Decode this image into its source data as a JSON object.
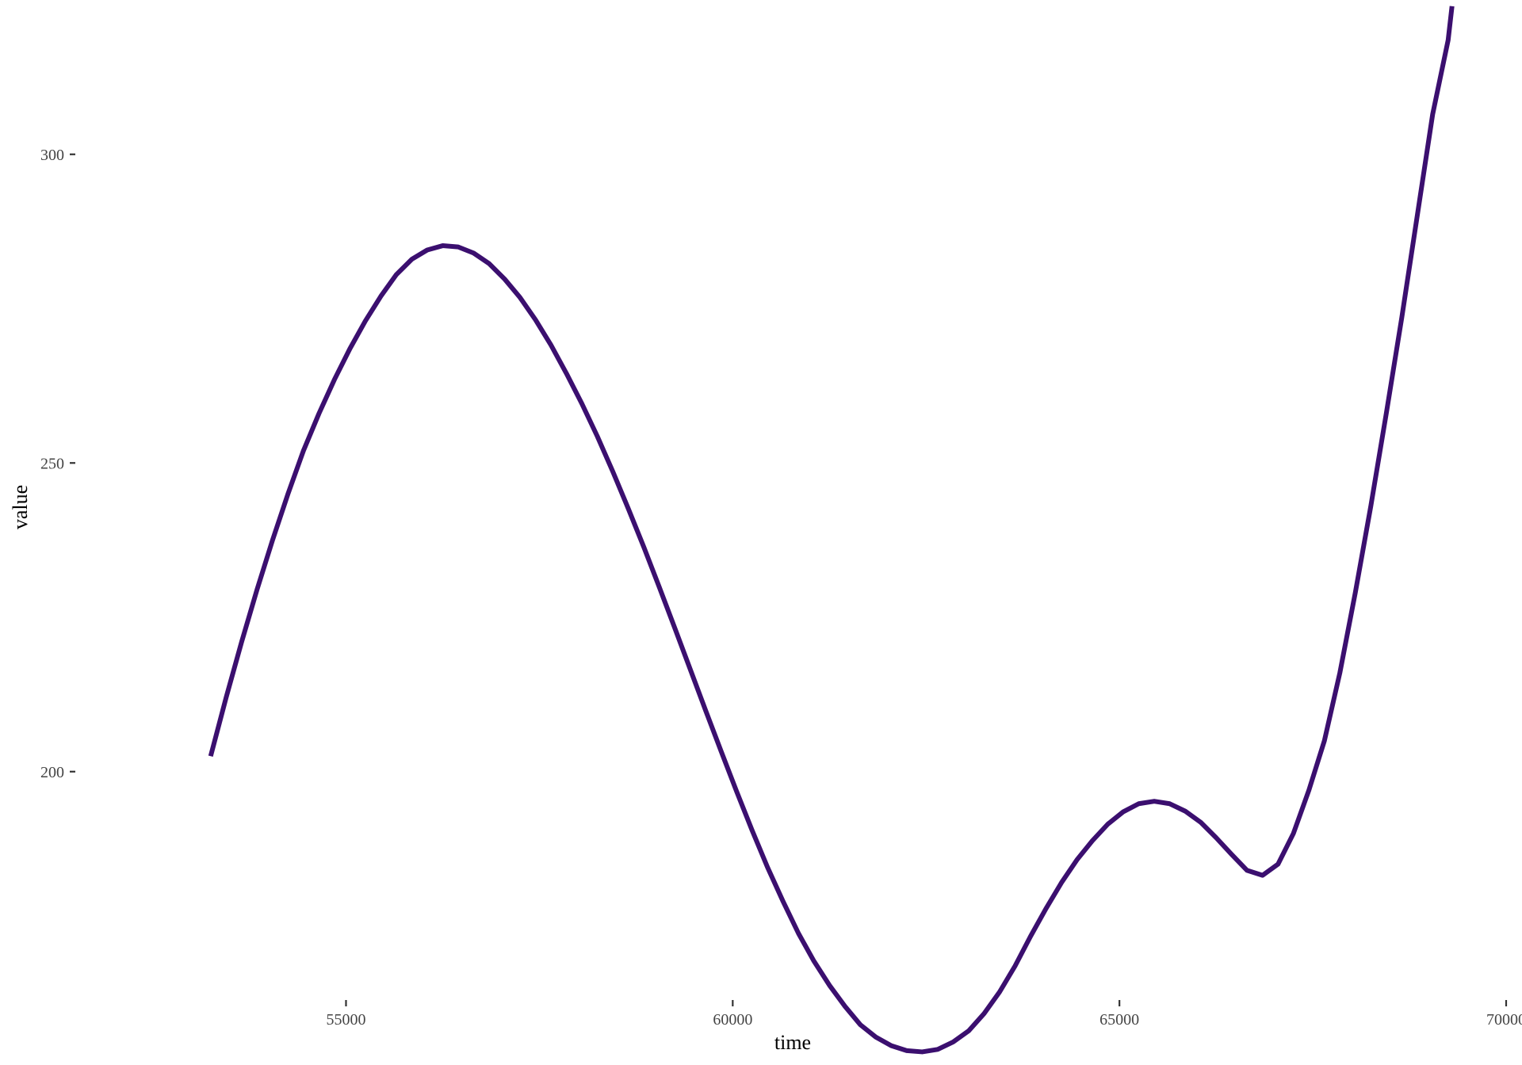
{
  "chart_data": {
    "type": "line",
    "xlabel": "time",
    "ylabel": "value",
    "xlim": [
      51500,
      70000
    ],
    "ylim": [
      163,
      325
    ],
    "x_ticks": [
      55000,
      60000,
      65000,
      70000
    ],
    "x_tick_labels": [
      "55000",
      "60000",
      "65000",
      "70000"
    ],
    "y_ticks": [
      200,
      250,
      300
    ],
    "y_tick_labels": [
      "200",
      "250",
      "300"
    ],
    "grid": false,
    "line_color": "#3b0f6f",
    "series": [
      {
        "x": [
          53250,
          53450,
          53650,
          53850,
          54050,
          54250,
          54450,
          54650,
          54850,
          55050,
          55250,
          55450,
          55650,
          55850,
          56050,
          56250,
          56450,
          56650,
          56850,
          57050,
          57250,
          57450,
          57650,
          57850,
          58050,
          58250,
          58450,
          58650,
          58850,
          59050,
          59250,
          59450,
          59650,
          59850,
          60050,
          60250,
          60450,
          60650,
          60850,
          61050,
          61250,
          61450,
          61650,
          61850,
          62050,
          62250,
          62450,
          62650,
          62850,
          63050,
          63250,
          63450,
          63650,
          63850,
          64050,
          64250,
          64450,
          64650,
          64850,
          65050,
          65250,
          65450,
          65650,
          65850,
          66050,
          66250,
          66450,
          66650,
          66850,
          67050,
          67250,
          67450,
          67650,
          67850,
          68050,
          68250,
          68450,
          68650,
          68850,
          69050,
          69250,
          69300
        ],
        "y": [
          202.5,
          212,
          221,
          229.5,
          237.5,
          245,
          252,
          258,
          263.5,
          268.5,
          273,
          277,
          280.5,
          283,
          284.5,
          285.2,
          285,
          284,
          282.3,
          279.8,
          276.8,
          273.2,
          269.1,
          264.5,
          259.6,
          254.3,
          248.6,
          242.6,
          236.4,
          229.9,
          223.3,
          216.6,
          209.9,
          203.3,
          196.8,
          190.5,
          184.5,
          179,
          173.8,
          169.3,
          165.4,
          162,
          159,
          157,
          155.6,
          154.8,
          154.6,
          155,
          156.2,
          158,
          160.8,
          164.3,
          168.5,
          173.3,
          177.8,
          182,
          185.7,
          188.8,
          191.5,
          193.5,
          194.8,
          195.2,
          194.8,
          193.6,
          191.8,
          189.3,
          186.6,
          184,
          183.2,
          185,
          190,
          197,
          205,
          216,
          229,
          243,
          258,
          273.5,
          290,
          306.5,
          318.5,
          324
        ]
      }
    ]
  }
}
